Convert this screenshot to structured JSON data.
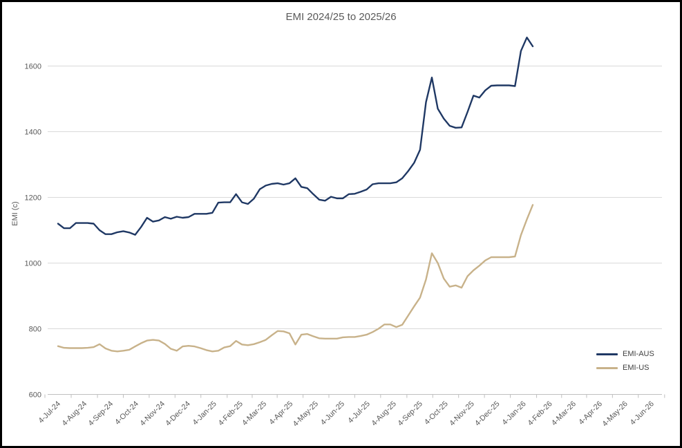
{
  "chart_data": {
    "type": "line",
    "title": "EMI 2024/25 to 2025/26",
    "xlabel": "",
    "ylabel": "EMI (c)",
    "ylim": [
      600,
      1700
    ],
    "yticks": [
      600,
      800,
      1000,
      1200,
      1400,
      1600
    ],
    "grid": "horizontal",
    "legend_position": "right-bottom",
    "x_frequency": "weekly",
    "x_start": "4-Jul-24",
    "x_end": "15-Jan-26",
    "x_tick_labels": [
      "4-Jul-24",
      "4-Aug-24",
      "4-Sep-24",
      "4-Oct-24",
      "4-Nov-24",
      "4-Dec-24",
      "4-Jan-25",
      "4-Feb-25",
      "4-Mar-25",
      "4-Apr-25",
      "4-May-25",
      "4-Jun-25",
      "4-Jul-25",
      "4-Aug-25",
      "4-Sep-25",
      "4-Oct-25",
      "4-Nov-25",
      "4-Dec-25",
      "4-Jan-26",
      "4-Feb-26",
      "4-Mar-26",
      "4-Apr-26",
      "4-May-26",
      "4-Jun-26"
    ],
    "colors": {
      "grid": "#D9D9D9",
      "axis": "#BFBFBF",
      "tick_text": "#595959",
      "title_text": "#595959"
    },
    "series": [
      {
        "name": "EMI-AUS",
        "color": "#1F3864",
        "values": [
          1120,
          1106,
          1106,
          1122,
          1122,
          1122,
          1120,
          1100,
          1088,
          1088,
          1094,
          1097,
          1093,
          1086,
          1110,
          1138,
          1126,
          1130,
          1140,
          1135,
          1141,
          1138,
          1140,
          1150,
          1150,
          1150,
          1153,
          1184,
          1185,
          1185,
          1210,
          1185,
          1180,
          1196,
          1225,
          1236,
          1241,
          1243,
          1239,
          1243,
          1258,
          1232,
          1228,
          1210,
          1193,
          1190,
          1202,
          1197,
          1197,
          1210,
          1211,
          1217,
          1224,
          1240,
          1243,
          1243,
          1243,
          1246,
          1258,
          1280,
          1305,
          1345,
          1490,
          1565,
          1470,
          1440,
          1418,
          1412,
          1413,
          1460,
          1510,
          1504,
          1526,
          1540,
          1541,
          1541,
          1541,
          1539,
          1646,
          1687,
          1660
        ]
      },
      {
        "name": "EMI-US",
        "color": "#C8B28A",
        "values": [
          747,
          742,
          741,
          741,
          741,
          742,
          744,
          753,
          740,
          733,
          731,
          733,
          736,
          746,
          756,
          764,
          766,
          764,
          754,
          739,
          733,
          746,
          748,
          746,
          741,
          735,
          731,
          733,
          743,
          747,
          763,
          752,
          750,
          753,
          759,
          766,
          780,
          793,
          792,
          786,
          752,
          782,
          784,
          777,
          771,
          770,
          770,
          770,
          774,
          775,
          775,
          778,
          782,
          790,
          800,
          813,
          813,
          805,
          812,
          840,
          868,
          895,
          950,
          1030,
          1000,
          953,
          928,
          932,
          925,
          960,
          978,
          992,
          1008,
          1018,
          1018,
          1018,
          1018,
          1020,
          1085,
          1133,
          1177
        ]
      }
    ]
  }
}
